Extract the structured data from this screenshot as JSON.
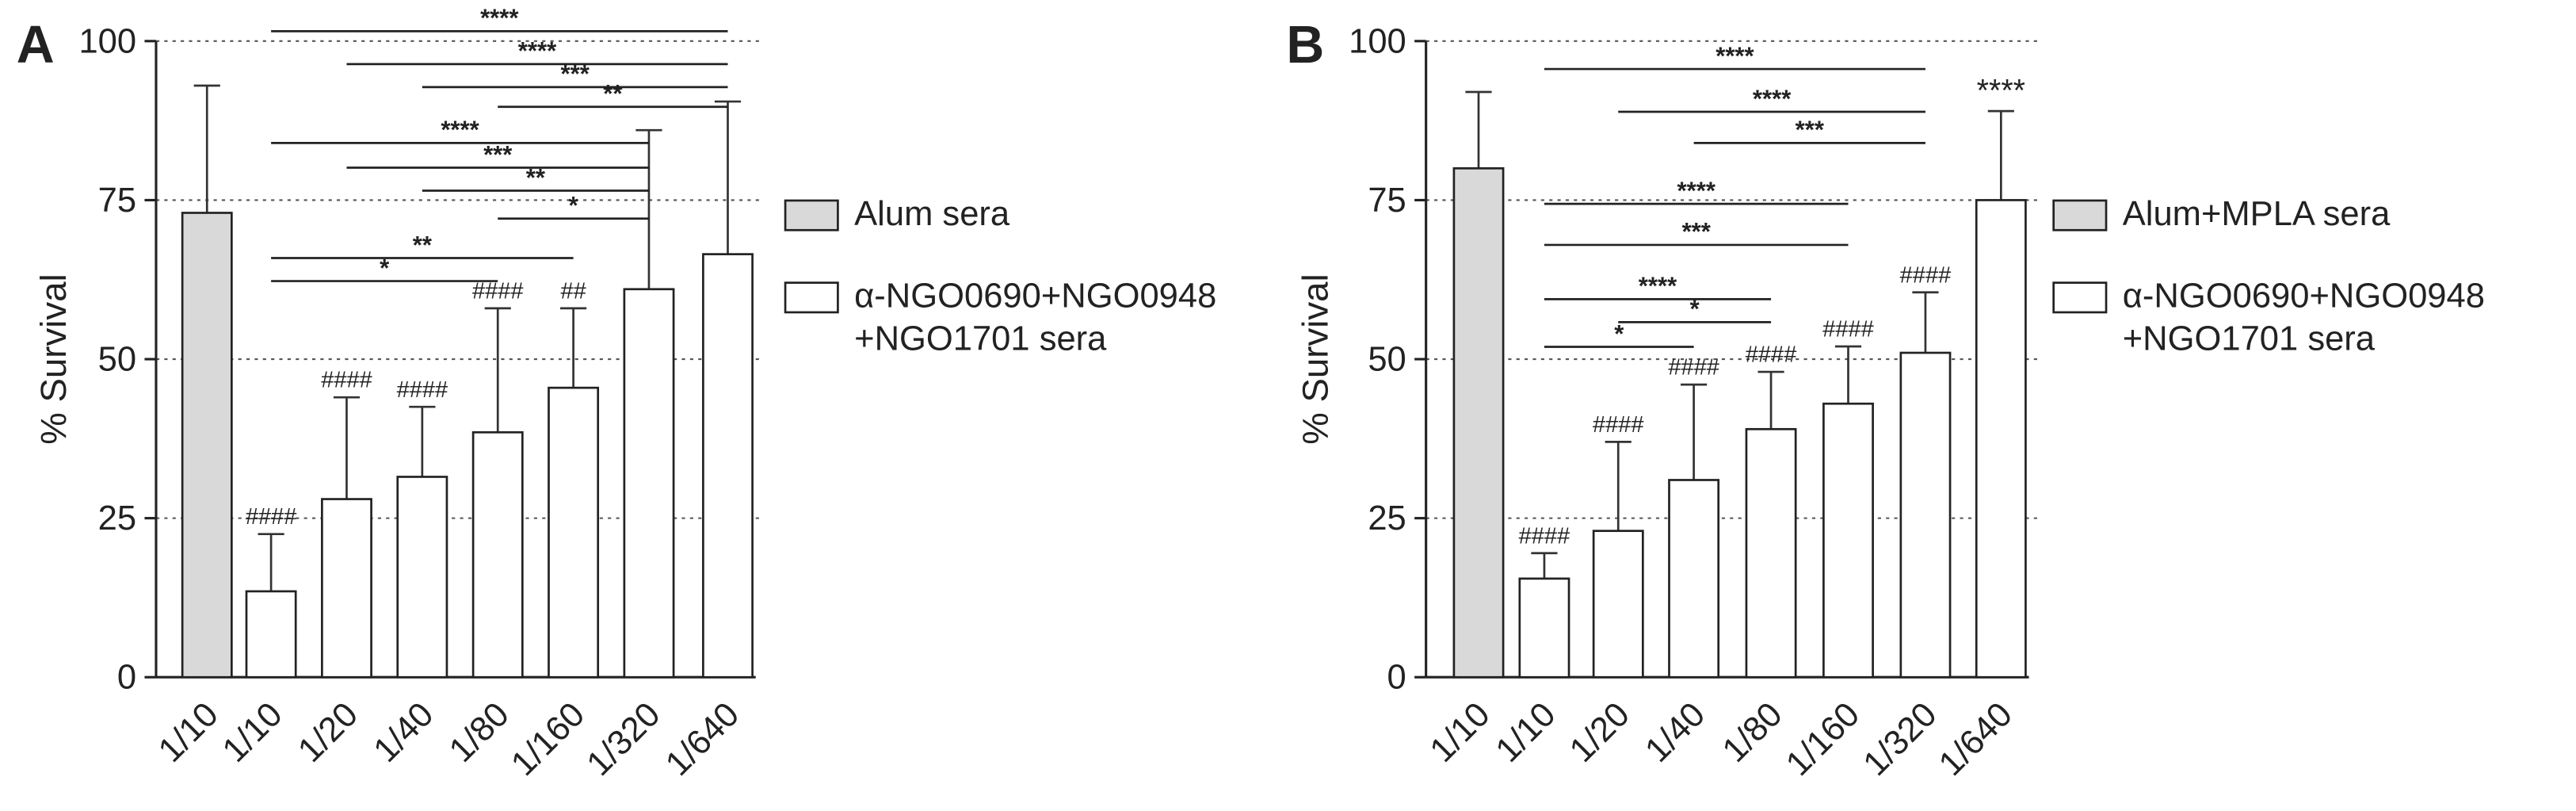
{
  "chart_data": [
    {
      "type": "bar",
      "panel_label": "A",
      "ylabel": "% Survival",
      "categories": [
        "1/10",
        "1/10",
        "1/20",
        "1/40",
        "1/80",
        "1/160",
        "1/320",
        "1/640"
      ],
      "series": [
        {
          "name": "Alum sera",
          "color": "#d9d9d9",
          "values": [
            73,
            null,
            null,
            null,
            null,
            null,
            null,
            null
          ],
          "errors": [
            20,
            null,
            null,
            null,
            null,
            null,
            null,
            null
          ]
        },
        {
          "name": "α-NGO0690+NGO0948\n+NGO1701 sera",
          "color": "#ffffff",
          "values": [
            null,
            13.5,
            28,
            31.5,
            38.5,
            45.5,
            61,
            66.5
          ],
          "errors": [
            null,
            9,
            16,
            11,
            19.5,
            12.5,
            25,
            24
          ],
          "annotations": [
            null,
            "####",
            "####",
            "####",
            "####",
            "##",
            null,
            null
          ]
        }
      ],
      "comparisons": [
        {
          "groups": [
            1,
            7
          ],
          "label": "****"
        },
        {
          "groups": [
            2,
            7
          ],
          "label": "****"
        },
        {
          "groups": [
            3,
            7
          ],
          "label": "***"
        },
        {
          "groups": [
            4,
            7
          ],
          "label": "**"
        },
        {
          "groups": [
            1,
            6
          ],
          "label": "****"
        },
        {
          "groups": [
            2,
            6
          ],
          "label": "***"
        },
        {
          "groups": [
            3,
            6
          ],
          "label": "**"
        },
        {
          "groups": [
            4,
            6
          ],
          "label": "*"
        },
        {
          "groups": [
            1,
            5
          ],
          "label": "**"
        },
        {
          "groups": [
            1,
            4
          ],
          "label": "*"
        }
      ],
      "ylim": [
        0,
        100
      ],
      "yticks": [
        0,
        25,
        50,
        75,
        100
      ],
      "grid": true
    },
    {
      "type": "bar",
      "panel_label": "B",
      "ylabel": "% Survival",
      "categories": [
        "1/10",
        "1/10",
        "1/20",
        "1/40",
        "1/80",
        "1/160",
        "1/320",
        "1/640"
      ],
      "series": [
        {
          "name": "Alum+MPLA sera",
          "color": "#d9d9d9",
          "values": [
            80,
            null,
            null,
            null,
            null,
            null,
            null,
            null
          ],
          "errors": [
            12,
            null,
            null,
            null,
            null,
            null,
            null,
            null
          ]
        },
        {
          "name": "α-NGO0690+NGO0948\n+NGO1701 sera",
          "color": "#ffffff",
          "values": [
            null,
            15.5,
            23,
            31,
            39,
            43,
            51,
            75
          ],
          "errors": [
            null,
            4,
            14,
            15,
            9,
            9,
            9.5,
            14
          ],
          "annotations": [
            null,
            "####",
            "####",
            "####",
            "####",
            "####",
            "####",
            "****"
          ]
        }
      ],
      "comparisons": [
        {
          "groups": [
            1,
            6
          ],
          "label": "****"
        },
        {
          "groups": [
            2,
            6
          ],
          "label": "****"
        },
        {
          "groups": [
            3,
            6
          ],
          "label": "***"
        },
        {
          "groups": [
            1,
            5
          ],
          "label": "****"
        },
        {
          "groups": [
            1,
            5
          ],
          "label": "***"
        },
        {
          "groups": [
            1,
            4
          ],
          "label": "****"
        },
        {
          "groups": [
            2,
            4
          ],
          "label": "*"
        },
        {
          "groups": [
            1,
            3
          ],
          "label": "*"
        }
      ],
      "ylim": [
        0,
        100
      ],
      "yticks": [
        0,
        25,
        50,
        75,
        100
      ],
      "grid": true
    }
  ]
}
